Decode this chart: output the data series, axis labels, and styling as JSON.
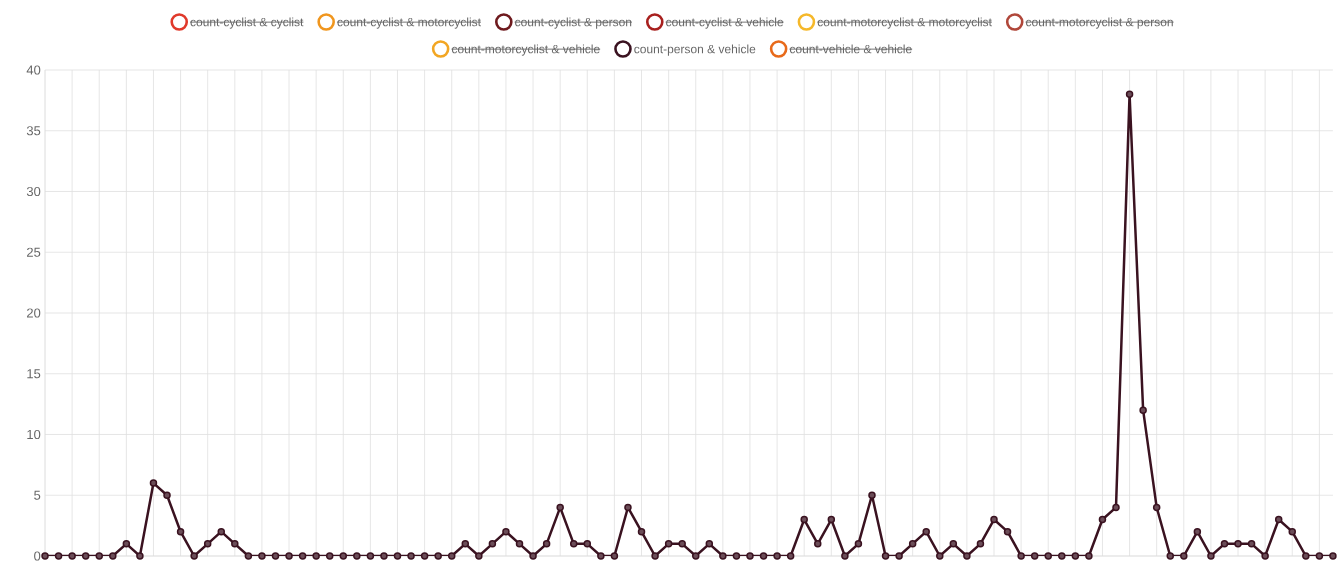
{
  "chart_data": {
    "type": "line",
    "categories": [
      null,
      null,
      null,
      null,
      null,
      null,
      null,
      null,
      null,
      null,
      null,
      null,
      null,
      null,
      null,
      null,
      null,
      null,
      null,
      null,
      null,
      null,
      null,
      null,
      null,
      null,
      null,
      null,
      null,
      null,
      null,
      null,
      null,
      null,
      null,
      null,
      null,
      null,
      null,
      null,
      null,
      null,
      null,
      null,
      null,
      null,
      null,
      null,
      null,
      null,
      null,
      null,
      null,
      null,
      null,
      null,
      null,
      null,
      null,
      null,
      null,
      null,
      null,
      null,
      null,
      null,
      null,
      null,
      null,
      null,
      null,
      null,
      null,
      null,
      null,
      null,
      null,
      null,
      null,
      null,
      null,
      null,
      null,
      null,
      null,
      null,
      null,
      null,
      null,
      null,
      null,
      null,
      null,
      null,
      null,
      null
    ],
    "series": [
      {
        "name": "count-cyclist & cyclist",
        "color": "#e0392b",
        "values": [
          null,
          null,
          null,
          null,
          null,
          null,
          null,
          null,
          null,
          null,
          null,
          null,
          null,
          null,
          null,
          null,
          null,
          null,
          null,
          null,
          null,
          null,
          null,
          null,
          null,
          null,
          null,
          null,
          null,
          null,
          null,
          null,
          null,
          null,
          null,
          null,
          null,
          null,
          null,
          null,
          null,
          null,
          null,
          null,
          null,
          null,
          null,
          null,
          null,
          null,
          null,
          null,
          null,
          null,
          null,
          null,
          null,
          null,
          null,
          null,
          null,
          null,
          null,
          null,
          null,
          null,
          null,
          null,
          null,
          null,
          null,
          null,
          null,
          null,
          null,
          null,
          null,
          null,
          null,
          null,
          null,
          null,
          null,
          null,
          null,
          null,
          null,
          null,
          null,
          null,
          null,
          null,
          null,
          null,
          null,
          null
        ]
      },
      {
        "name": "count-cyclist & motorcyclist",
        "color": "#f0961e",
        "values": [
          null,
          null,
          null,
          null,
          null,
          null,
          null,
          null,
          null,
          null,
          null,
          null,
          null,
          null,
          null,
          null,
          null,
          null,
          null,
          null,
          null,
          null,
          null,
          null,
          null,
          null,
          null,
          null,
          null,
          null,
          null,
          null,
          null,
          null,
          null,
          null,
          null,
          null,
          null,
          null,
          null,
          null,
          null,
          null,
          null,
          null,
          null,
          null,
          null,
          null,
          null,
          null,
          null,
          null,
          null,
          null,
          null,
          null,
          null,
          null,
          null,
          null,
          null,
          null,
          null,
          null,
          null,
          null,
          null,
          null,
          null,
          null,
          null,
          null,
          null,
          null,
          null,
          null,
          null,
          null,
          null,
          null,
          null,
          null,
          null,
          null,
          null,
          null,
          null,
          null,
          null,
          null,
          null,
          null,
          null,
          null
        ]
      },
      {
        "name": "count-cyclist & person",
        "color": "#6e1a1e",
        "values": [
          null,
          null,
          null,
          null,
          null,
          null,
          null,
          null,
          null,
          null,
          null,
          null,
          null,
          null,
          null,
          null,
          null,
          null,
          null,
          null,
          null,
          null,
          null,
          null,
          null,
          null,
          null,
          null,
          null,
          null,
          null,
          null,
          null,
          null,
          null,
          null,
          null,
          null,
          null,
          null,
          null,
          null,
          null,
          null,
          null,
          null,
          null,
          null,
          null,
          null,
          null,
          null,
          null,
          null,
          null,
          null,
          null,
          null,
          null,
          null,
          null,
          null,
          null,
          null,
          null,
          null,
          null,
          null,
          null,
          null,
          null,
          null,
          null,
          null,
          null,
          null,
          null,
          null,
          null,
          null,
          null,
          null,
          null,
          null,
          null,
          null,
          null,
          null,
          null,
          null,
          null,
          null,
          null,
          null,
          null,
          null
        ]
      },
      {
        "name": "count-cyclist & vehicle",
        "color": "#a8201e",
        "values": [
          null,
          null,
          null,
          null,
          null,
          null,
          null,
          null,
          null,
          null,
          null,
          null,
          null,
          null,
          null,
          null,
          null,
          null,
          null,
          null,
          null,
          null,
          null,
          null,
          null,
          null,
          null,
          null,
          null,
          null,
          null,
          null,
          null,
          null,
          null,
          null,
          null,
          null,
          null,
          null,
          null,
          null,
          null,
          null,
          null,
          null,
          null,
          null,
          null,
          null,
          null,
          null,
          null,
          null,
          null,
          null,
          null,
          null,
          null,
          null,
          null,
          null,
          null,
          null,
          null,
          null,
          null,
          null,
          null,
          null,
          null,
          null,
          null,
          null,
          null,
          null,
          null,
          null,
          null,
          null,
          null,
          null,
          null,
          null,
          null,
          null,
          null,
          null,
          null,
          null,
          null,
          null,
          null,
          null,
          null,
          null
        ]
      },
      {
        "name": "count-motorcyclist & motorcyclist",
        "color": "#f5b82a",
        "values": [
          null,
          null,
          null,
          null,
          null,
          null,
          null,
          null,
          null,
          null,
          null,
          null,
          null,
          null,
          null,
          null,
          null,
          null,
          null,
          null,
          null,
          null,
          null,
          null,
          null,
          null,
          null,
          null,
          null,
          null,
          null,
          null,
          null,
          null,
          null,
          null,
          null,
          null,
          null,
          null,
          null,
          null,
          null,
          null,
          null,
          null,
          null,
          null,
          null,
          null,
          null,
          null,
          null,
          null,
          null,
          null,
          null,
          null,
          null,
          null,
          null,
          null,
          null,
          null,
          null,
          null,
          null,
          null,
          null,
          null,
          null,
          null,
          null,
          null,
          null,
          null,
          null,
          null,
          null,
          null,
          null,
          null,
          null,
          null,
          null,
          null,
          null,
          null,
          null,
          null,
          null,
          null,
          null,
          null,
          null,
          null
        ]
      },
      {
        "name": "count-motorcyclist & person",
        "color": "#b0473a",
        "values": [
          null,
          null,
          null,
          null,
          null,
          null,
          null,
          null,
          null,
          null,
          null,
          null,
          null,
          null,
          null,
          null,
          null,
          null,
          null,
          null,
          null,
          null,
          null,
          null,
          null,
          null,
          null,
          null,
          null,
          null,
          null,
          null,
          null,
          null,
          null,
          null,
          null,
          null,
          null,
          null,
          null,
          null,
          null,
          null,
          null,
          null,
          null,
          null,
          null,
          null,
          null,
          null,
          null,
          null,
          null,
          null,
          null,
          null,
          null,
          null,
          null,
          null,
          null,
          null,
          null,
          null,
          null,
          null,
          null,
          null,
          null,
          null,
          null,
          null,
          null,
          null,
          null,
          null,
          null,
          null,
          null,
          null,
          null,
          null,
          null,
          null,
          null,
          null,
          null,
          null,
          null,
          null,
          null,
          null,
          null,
          null
        ]
      },
      {
        "name": "count-motorcyclist & vehicle",
        "color": "#f2a623",
        "values": [
          null,
          null,
          null,
          null,
          null,
          null,
          null,
          null,
          null,
          null,
          null,
          null,
          null,
          null,
          null,
          null,
          null,
          null,
          null,
          null,
          null,
          null,
          null,
          null,
          null,
          null,
          null,
          null,
          null,
          null,
          null,
          null,
          null,
          null,
          null,
          null,
          null,
          null,
          null,
          null,
          null,
          null,
          null,
          null,
          null,
          null,
          null,
          null,
          null,
          null,
          null,
          null,
          null,
          null,
          null,
          null,
          null,
          null,
          null,
          null,
          null,
          null,
          null,
          null,
          null,
          null,
          null,
          null,
          null,
          null,
          null,
          null,
          null,
          null,
          null,
          null,
          null,
          null,
          null,
          null,
          null,
          null,
          null,
          null,
          null,
          null,
          null,
          null,
          null,
          null,
          null,
          null,
          null,
          null,
          null,
          null
        ]
      },
      {
        "name": "count-person & vehicle",
        "color": "#3a1220",
        "values": [
          0,
          0,
          0,
          0,
          0,
          0,
          1,
          0,
          6,
          5,
          2,
          0,
          1,
          2,
          1,
          0,
          0,
          0,
          0,
          0,
          0,
          0,
          0,
          0,
          0,
          0,
          0,
          0,
          0,
          0,
          0,
          1,
          0,
          1,
          2,
          1,
          0,
          1,
          4,
          1,
          1,
          0,
          0,
          4,
          2,
          0,
          1,
          1,
          0,
          1,
          0,
          0,
          0,
          0,
          0,
          0,
          3,
          1,
          3,
          0,
          1,
          5,
          0,
          0,
          1,
          2,
          0,
          1,
          0,
          1,
          3,
          2,
          0,
          0,
          0,
          0,
          0,
          0,
          3,
          4,
          38,
          12,
          4,
          0,
          0,
          2,
          0,
          1,
          1,
          1,
          0,
          3,
          2,
          0,
          0,
          0
        ]
      },
      {
        "name": "count-vehicle & vehicle",
        "color": "#e86a1a",
        "values": [
          null,
          null,
          null,
          null,
          null,
          null,
          null,
          null,
          null,
          null,
          null,
          null,
          null,
          null,
          null,
          null,
          null,
          null,
          null,
          null,
          null,
          null,
          null,
          null,
          null,
          null,
          null,
          null,
          null,
          null,
          null,
          null,
          null,
          null,
          null,
          null,
          null,
          null,
          null,
          null,
          null,
          null,
          null,
          null,
          null,
          null,
          null,
          null,
          null,
          null,
          null,
          null,
          null,
          null,
          null,
          null,
          null,
          null,
          null,
          null,
          null,
          null,
          null,
          null,
          null,
          null,
          null,
          null,
          null,
          null,
          null,
          null,
          null,
          null,
          null,
          null,
          null,
          null,
          null,
          null,
          null,
          null,
          null,
          null,
          null,
          null,
          null,
          null,
          null,
          null,
          null,
          null,
          null,
          null,
          null,
          null
        ]
      }
    ],
    "ylim": [
      0,
      40
    ],
    "yticks": [
      0,
      5,
      10,
      15,
      20,
      25,
      30,
      35,
      40
    ],
    "grid": true,
    "legend": "top",
    "marker": "circle",
    "line_style": "solid",
    "tick_labels": "y"
  }
}
